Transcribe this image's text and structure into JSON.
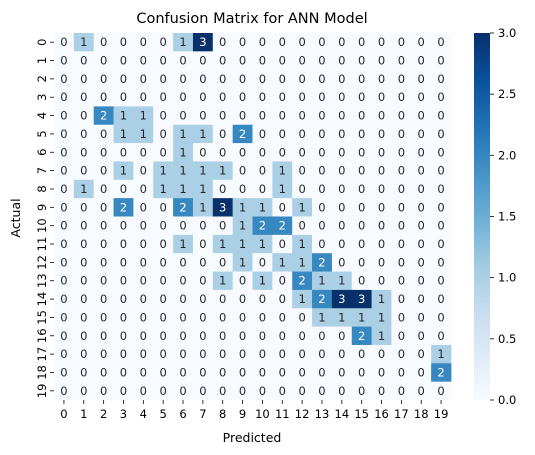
{
  "chart_data": {
    "type": "heatmap",
    "title": "Confusion Matrix for ANN Model",
    "xlabel": "Predicted",
    "ylabel": "Actual",
    "x_labels": [
      "0",
      "1",
      "2",
      "3",
      "4",
      "5",
      "6",
      "7",
      "8",
      "9",
      "10",
      "11",
      "12",
      "13",
      "14",
      "15",
      "16",
      "17",
      "18",
      "19"
    ],
    "y_labels": [
      "0",
      "1",
      "2",
      "3",
      "4",
      "5",
      "6",
      "7",
      "8",
      "9",
      "10",
      "11",
      "12",
      "13",
      "14",
      "15",
      "16",
      "17",
      "18",
      "19"
    ],
    "values": [
      [
        0,
        1,
        0,
        0,
        0,
        0,
        1,
        3,
        0,
        0,
        0,
        0,
        0,
        0,
        0,
        0,
        0,
        0,
        0,
        0
      ],
      [
        0,
        0,
        0,
        0,
        0,
        0,
        0,
        0,
        0,
        0,
        0,
        0,
        0,
        0,
        0,
        0,
        0,
        0,
        0,
        0
      ],
      [
        0,
        0,
        0,
        0,
        0,
        0,
        0,
        0,
        0,
        0,
        0,
        0,
        0,
        0,
        0,
        0,
        0,
        0,
        0,
        0
      ],
      [
        0,
        0,
        0,
        0,
        0,
        0,
        0,
        0,
        0,
        0,
        0,
        0,
        0,
        0,
        0,
        0,
        0,
        0,
        0,
        0
      ],
      [
        0,
        0,
        2,
        1,
        1,
        0,
        0,
        0,
        0,
        0,
        0,
        0,
        0,
        0,
        0,
        0,
        0,
        0,
        0,
        0
      ],
      [
        0,
        0,
        0,
        1,
        1,
        0,
        1,
        1,
        0,
        2,
        0,
        0,
        0,
        0,
        0,
        0,
        0,
        0,
        0,
        0
      ],
      [
        0,
        0,
        0,
        0,
        0,
        0,
        1,
        0,
        0,
        0,
        0,
        0,
        0,
        0,
        0,
        0,
        0,
        0,
        0,
        0
      ],
      [
        0,
        0,
        0,
        1,
        0,
        1,
        1,
        1,
        1,
        0,
        0,
        1,
        0,
        0,
        0,
        0,
        0,
        0,
        0,
        0
      ],
      [
        0,
        1,
        0,
        0,
        0,
        1,
        1,
        1,
        0,
        0,
        0,
        1,
        0,
        0,
        0,
        0,
        0,
        0,
        0,
        0
      ],
      [
        0,
        0,
        0,
        2,
        0,
        0,
        2,
        1,
        3,
        1,
        1,
        0,
        1,
        0,
        0,
        0,
        0,
        0,
        0,
        0
      ],
      [
        0,
        0,
        0,
        0,
        0,
        0,
        0,
        0,
        0,
        1,
        2,
        2,
        0,
        0,
        0,
        0,
        0,
        0,
        0,
        0
      ],
      [
        0,
        0,
        0,
        0,
        0,
        0,
        1,
        0,
        1,
        1,
        1,
        0,
        1,
        0,
        0,
        0,
        0,
        0,
        0,
        0
      ],
      [
        0,
        0,
        0,
        0,
        0,
        0,
        0,
        0,
        0,
        1,
        0,
        1,
        1,
        2,
        0,
        0,
        0,
        0,
        0,
        0
      ],
      [
        0,
        0,
        0,
        0,
        0,
        0,
        0,
        0,
        1,
        0,
        1,
        0,
        2,
        1,
        1,
        0,
        0,
        0,
        0,
        0
      ],
      [
        0,
        0,
        0,
        0,
        0,
        0,
        0,
        0,
        0,
        0,
        0,
        0,
        1,
        2,
        3,
        3,
        1,
        0,
        0,
        0
      ],
      [
        0,
        0,
        0,
        0,
        0,
        0,
        0,
        0,
        0,
        0,
        0,
        0,
        0,
        1,
        1,
        1,
        1,
        0,
        0,
        0
      ],
      [
        0,
        0,
        0,
        0,
        0,
        0,
        0,
        0,
        0,
        0,
        0,
        0,
        0,
        0,
        0,
        2,
        1,
        0,
        0,
        0
      ],
      [
        0,
        0,
        0,
        0,
        0,
        0,
        0,
        0,
        0,
        0,
        0,
        0,
        0,
        0,
        0,
        0,
        0,
        0,
        0,
        1
      ],
      [
        0,
        0,
        0,
        0,
        0,
        0,
        0,
        0,
        0,
        0,
        0,
        0,
        0,
        0,
        0,
        0,
        0,
        0,
        0,
        2
      ],
      [
        0,
        0,
        0,
        0,
        0,
        0,
        0,
        0,
        0,
        0,
        0,
        0,
        0,
        0,
        0,
        0,
        0,
        0,
        0,
        0
      ]
    ],
    "vmin": 0,
    "vmax": 3,
    "colormap": "Blues",
    "colorbar_ticks": [
      "0.0",
      "0.5",
      "1.0",
      "1.5",
      "2.0",
      "2.5",
      "3.0"
    ],
    "colorbar_tick_values": [
      0,
      0.5,
      1.0,
      1.5,
      2.0,
      2.5,
      3.0
    ],
    "annotate_cells": true,
    "grid": false
  }
}
